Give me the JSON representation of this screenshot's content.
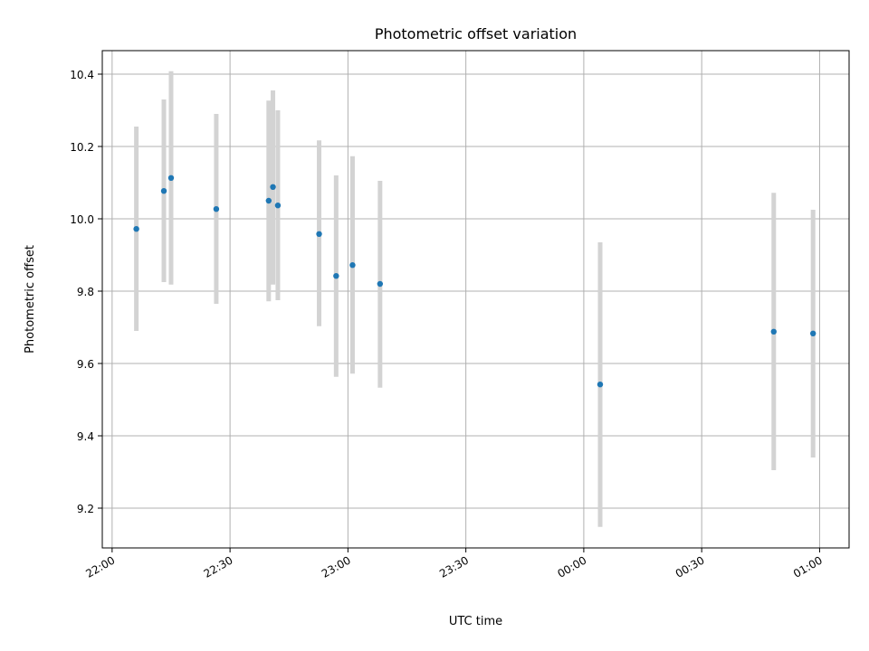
{
  "chart_data": {
    "type": "scatter",
    "title": "Photometric offset variation",
    "xlabel": "UTC time",
    "ylabel": "Photometric offset",
    "x_ticks": [
      {
        "time": "22:00",
        "label": "22:00"
      },
      {
        "time": "22:30",
        "label": "22:30"
      },
      {
        "time": "23:00",
        "label": "23:00"
      },
      {
        "time": "23:30",
        "label": "23:30"
      },
      {
        "time": "00:00",
        "label": "00:00"
      },
      {
        "time": "00:30",
        "label": "00:30"
      },
      {
        "time": "01:00",
        "label": "01:00"
      }
    ],
    "y_ticks": [
      {
        "value": 9.2,
        "label": "9.2"
      },
      {
        "value": 9.4,
        "label": "9.4"
      },
      {
        "value": 9.6,
        "label": "9.6"
      },
      {
        "value": 9.8,
        "label": "9.8"
      },
      {
        "value": 10.0,
        "label": "10.0"
      },
      {
        "value": 10.2,
        "label": "10.2"
      },
      {
        "value": 10.4,
        "label": "10.4"
      }
    ],
    "xlim": [
      "21:57:30",
      "01:07:30"
    ],
    "ylim": [
      9.09,
      10.465
    ],
    "grid": true,
    "marker_color": "#1f77b4",
    "errorbar_color": "#d3d3d3",
    "points": [
      {
        "time": "22:06:10",
        "y": 9.972,
        "yerr_low": 9.69,
        "yerr_high": 10.255
      },
      {
        "time": "22:13:10",
        "y": 10.077,
        "yerr_low": 9.825,
        "yerr_high": 10.33
      },
      {
        "time": "22:15:00",
        "y": 10.113,
        "yerr_low": 9.818,
        "yerr_high": 10.408
      },
      {
        "time": "22:26:30",
        "y": 10.027,
        "yerr_low": 9.765,
        "yerr_high": 10.29
      },
      {
        "time": "22:39:50",
        "y": 10.05,
        "yerr_low": 9.772,
        "yerr_high": 10.327
      },
      {
        "time": "22:40:55",
        "y": 10.088,
        "yerr_low": 9.818,
        "yerr_high": 10.355
      },
      {
        "time": "22:42:10",
        "y": 10.037,
        "yerr_low": 9.775,
        "yerr_high": 10.3
      },
      {
        "time": "22:52:40",
        "y": 9.958,
        "yerr_low": 9.703,
        "yerr_high": 10.217
      },
      {
        "time": "22:57:00",
        "y": 9.842,
        "yerr_low": 9.563,
        "yerr_high": 10.12
      },
      {
        "time": "23:01:10",
        "y": 9.872,
        "yerr_low": 9.572,
        "yerr_high": 10.173
      },
      {
        "time": "23:08:10",
        "y": 9.82,
        "yerr_low": 9.533,
        "yerr_high": 10.105
      },
      {
        "time": "00:04:10",
        "y": 9.542,
        "yerr_low": 9.148,
        "yerr_high": 9.935
      },
      {
        "time": "00:48:20",
        "y": 9.688,
        "yerr_low": 9.305,
        "yerr_high": 10.072
      },
      {
        "time": "00:58:20",
        "y": 9.683,
        "yerr_low": 9.34,
        "yerr_high": 10.025
      }
    ]
  }
}
